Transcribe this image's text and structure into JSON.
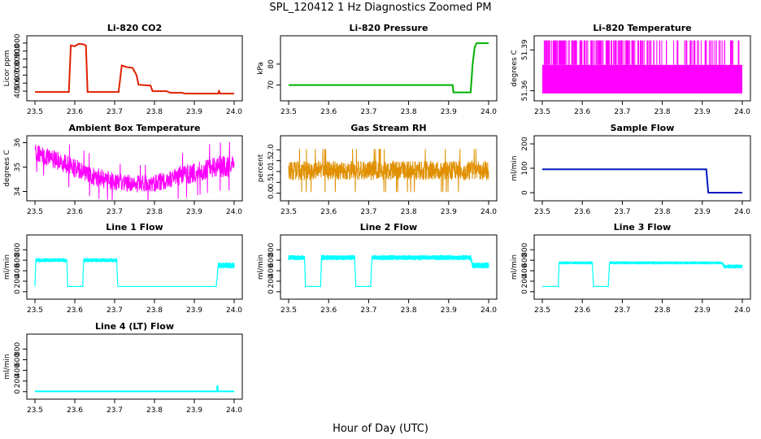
{
  "figure": {
    "title": "SPL_120412  1 Hz Diagnostics Zoomed PM",
    "xlabel": "Hour of Day (UTC)"
  },
  "chart_data": [
    {
      "type": "line",
      "title": "Li-820 CO2",
      "ylabel": "Licor ppm",
      "color": "#e02000",
      "xlim": [
        23.5,
        24.0
      ],
      "ylim": [
        320,
        1050
      ],
      "yticks": [
        400,
        500,
        600,
        700,
        800,
        900,
        1000
      ],
      "x": [
        23.5,
        23.585,
        23.59,
        23.6,
        23.61,
        23.62,
        23.628,
        23.632,
        23.71,
        23.718,
        23.73,
        23.745,
        23.755,
        23.76,
        23.79,
        23.795,
        23.83,
        23.84,
        23.87,
        23.875,
        23.96,
        23.962,
        23.965,
        24.0
      ],
      "values": [
        390,
        390,
        970,
        960,
        990,
        985,
        970,
        390,
        390,
        720,
        700,
        690,
        600,
        480,
        470,
        400,
        400,
        380,
        380,
        370,
        370,
        400,
        370,
        370
      ]
    },
    {
      "type": "line",
      "title": "Li-820 Pressure",
      "ylabel": "kPa",
      "color": "#00b000",
      "xlim": [
        23.5,
        24.0
      ],
      "ylim": [
        64,
        92
      ],
      "yticks": [
        70,
        80
      ],
      "x": [
        23.5,
        23.91,
        23.912,
        23.955,
        23.96,
        23.965,
        23.97,
        24.0
      ],
      "values": [
        70,
        70,
        66.5,
        66.5,
        80,
        88,
        90,
        90
      ]
    },
    {
      "type": "band",
      "title": "Li-820 Temperature",
      "ylabel": "degrees C",
      "color": "#ff00ff",
      "xlim": [
        23.5,
        24.0
      ],
      "ylim": [
        51.355,
        51.398
      ],
      "yticks": [
        51.36,
        51.39
      ],
      "band_low": 51.358,
      "band_high": 51.379,
      "spike_high": 51.397
    },
    {
      "type": "noisy",
      "title": "Ambient Box Temperature",
      "ylabel": "degrees C",
      "color": "#ff00ff",
      "xlim": [
        23.5,
        24.0
      ],
      "ylim": [
        33.75,
        36.15
      ],
      "yticks": [
        34.0,
        35.0,
        36.0
      ],
      "x": [
        23.5,
        23.55,
        23.6,
        23.65,
        23.7,
        23.75,
        23.8,
        23.85,
        23.9,
        23.95,
        24.0
      ],
      "center": [
        35.6,
        35.3,
        34.95,
        34.6,
        34.4,
        34.3,
        34.35,
        34.55,
        34.8,
        35.0,
        35.05
      ],
      "amplitude": [
        0.35,
        0.4,
        0.4,
        0.4,
        0.35,
        0.35,
        0.35,
        0.4,
        0.45,
        0.45,
        0.45
      ]
    },
    {
      "type": "noisy",
      "title": "Gas Stream RH",
      "ylabel": "percent",
      "color": "#e09000",
      "xlim": [
        23.5,
        24.0
      ],
      "ylim": [
        -0.2,
        2.5
      ],
      "yticks": [
        0.0,
        0.5,
        1.0,
        1.5,
        2.0
      ],
      "x": [
        23.5,
        24.0
      ],
      "center": [
        1.05,
        1.05
      ],
      "amplitude": [
        0.45,
        0.45
      ]
    },
    {
      "type": "line",
      "title": "Sample Flow",
      "ylabel": "ml/min",
      "color": "#0018c0",
      "xlim": [
        23.5,
        24.0
      ],
      "ylim": [
        -20,
        220
      ],
      "yticks": [
        0,
        100,
        200
      ],
      "x": [
        23.5,
        23.91,
        23.915,
        23.92,
        24.0
      ],
      "values": [
        96,
        96,
        0,
        0,
        0
      ]
    },
    {
      "type": "flow",
      "title": "Line 1 Flow",
      "ylabel": "ml/min",
      "color": "#00ffff",
      "xlim": [
        23.5,
        24.0
      ],
      "ylim": [
        -80,
        1020
      ],
      "yticks": [
        0,
        200,
        400,
        600,
        800
      ],
      "x": [
        23.5,
        23.502,
        23.58,
        23.582,
        23.62,
        23.622,
        23.705,
        23.708,
        23.955,
        23.96,
        24.0
      ],
      "values": [
        100,
        600,
        600,
        100,
        100,
        600,
        600,
        100,
        100,
        500,
        500
      ],
      "noise": [
        0,
        40,
        40,
        0,
        0,
        40,
        40,
        0,
        0,
        60,
        60
      ]
    },
    {
      "type": "flow",
      "title": "Line 2 Flow",
      "ylabel": "ml/min",
      "color": "#00ffff",
      "xlim": [
        23.5,
        24.0
      ],
      "ylim": [
        -80,
        1020
      ],
      "yticks": [
        0,
        200,
        400,
        600,
        800
      ],
      "x": [
        23.5,
        23.54,
        23.542,
        23.58,
        23.582,
        23.665,
        23.668,
        23.705,
        23.708,
        23.955,
        23.96,
        24.0
      ],
      "values": [
        650,
        650,
        100,
        100,
        650,
        650,
        100,
        100,
        650,
        650,
        500,
        500
      ],
      "noise": [
        50,
        50,
        0,
        0,
        50,
        50,
        0,
        0,
        50,
        50,
        60,
        60
      ]
    },
    {
      "type": "flow",
      "title": "Line 3 Flow",
      "ylabel": "ml/min",
      "color": "#00ffff",
      "xlim": [
        23.5,
        24.0
      ],
      "ylim": [
        -80,
        1020
      ],
      "yticks": [
        0,
        200,
        400,
        600,
        800
      ],
      "x": [
        23.5,
        23.502,
        23.54,
        23.542,
        23.625,
        23.628,
        23.665,
        23.668,
        23.95,
        23.955,
        24.0
      ],
      "values": [
        100,
        100,
        100,
        550,
        550,
        100,
        100,
        550,
        550,
        480,
        480
      ],
      "noise": [
        0,
        0,
        0,
        30,
        30,
        0,
        0,
        30,
        30,
        40,
        40
      ]
    },
    {
      "type": "line",
      "title": "Line 4 (LT) Flow",
      "ylabel": "ml/min",
      "color": "#00ffff",
      "xlim": [
        23.5,
        24.0
      ],
      "ylim": [
        -80,
        1020
      ],
      "yticks": [
        0,
        200,
        400,
        600,
        800
      ],
      "x": [
        23.5,
        23.957,
        23.958,
        23.959,
        23.96,
        24.0
      ],
      "values": [
        5,
        5,
        120,
        5,
        5,
        5
      ]
    }
  ]
}
